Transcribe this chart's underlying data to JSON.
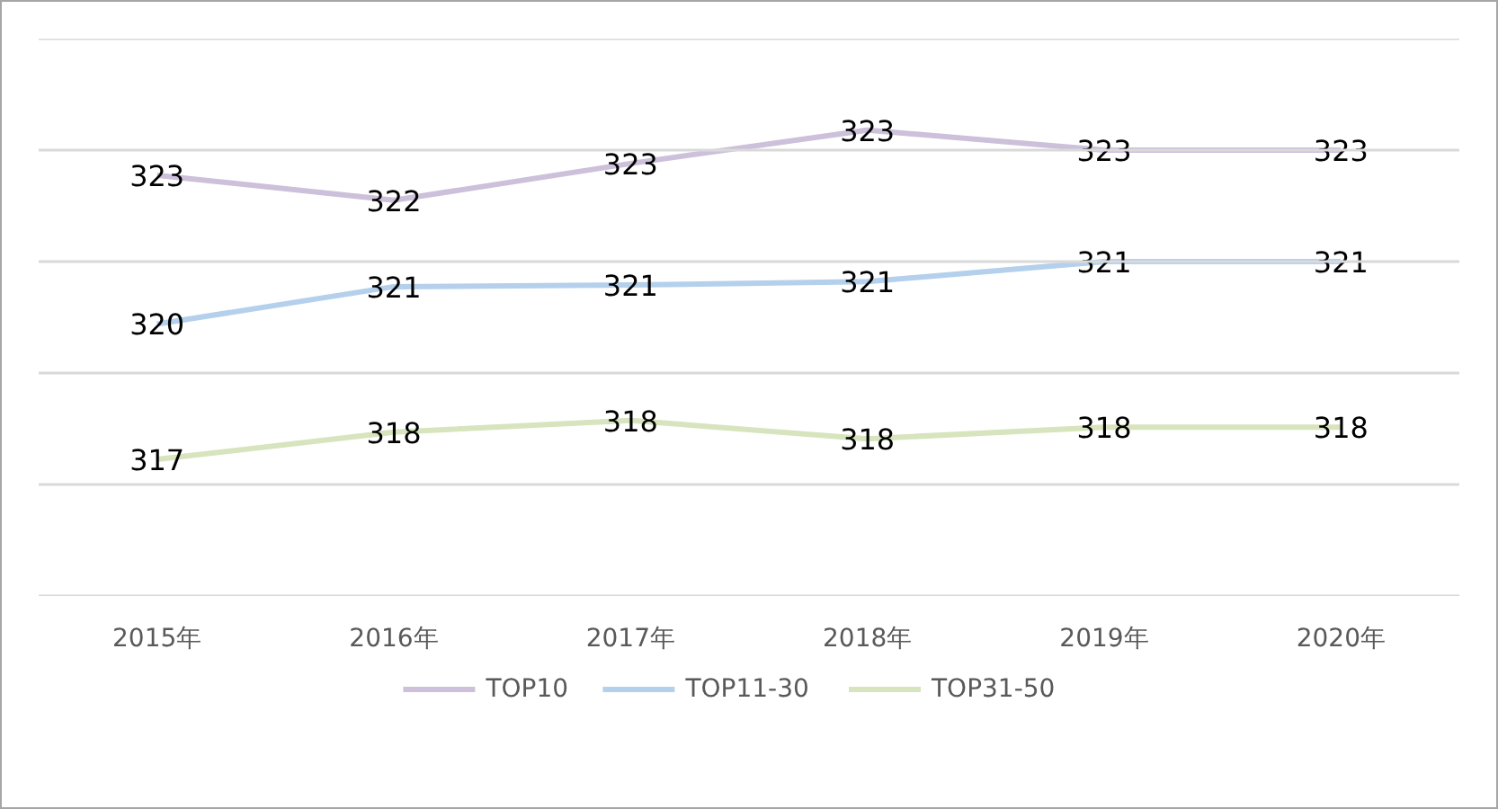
{
  "chart_data": {
    "type": "line",
    "categories": [
      "2015年",
      "2016年",
      "2017年",
      "2018年",
      "2019年",
      "2020年"
    ],
    "series": [
      {
        "name": "TOP10",
        "color": "#ccc0da",
        "values": [
          322.55,
          322.1,
          322.76,
          323.36,
          323.0,
          323.0
        ],
        "value_labels": [
          "323",
          "322",
          "323",
          "323",
          "323",
          "323"
        ]
      },
      {
        "name": "TOP11-30",
        "color": "#b4d0ec",
        "values": [
          319.88,
          320.55,
          320.58,
          320.64,
          321.0,
          321.0
        ],
        "value_labels": [
          "320",
          "321",
          "321",
          "321",
          "321",
          "321"
        ]
      },
      {
        "name": "TOP31-50",
        "color": "#d7e4bd",
        "values": [
          317.45,
          317.94,
          318.15,
          317.82,
          318.03,
          318.03
        ],
        "value_labels": [
          "317",
          "318",
          "318",
          "318",
          "318",
          "318"
        ]
      }
    ],
    "ylim": [
      315,
      325
    ],
    "yticks": [
      {
        "value": 315,
        "label": null
      },
      {
        "value": 317,
        "label": null
      },
      {
        "value": 319,
        "label": null
      },
      {
        "value": 321,
        "label": null
      },
      {
        "value": 323,
        "label": null
      },
      {
        "value": 325,
        "label": null
      }
    ],
    "tick_labels": "x",
    "grid": "y",
    "legend": "bottom",
    "marker": "none",
    "line_style": "solid"
  }
}
